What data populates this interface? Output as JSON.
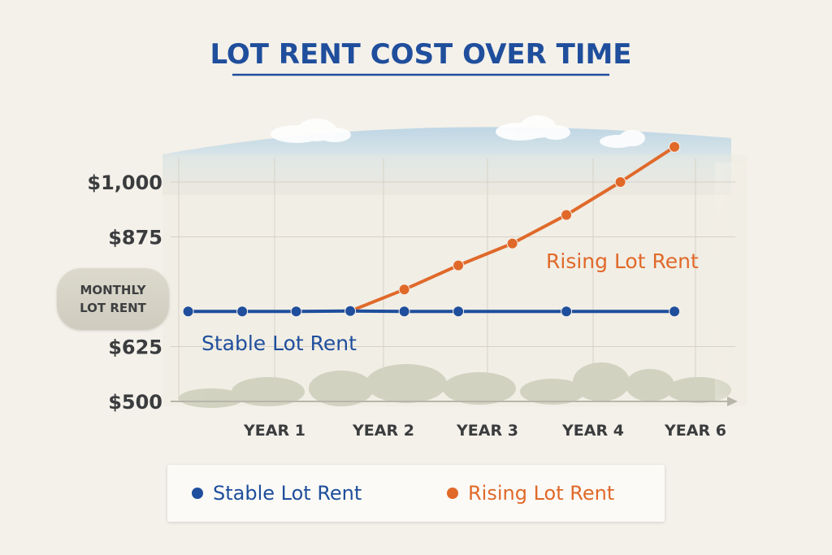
{
  "colors": {
    "stable": "#1f4e9c",
    "rising": "#e0692a",
    "title": "#1f4e9c",
    "grid": "#d6d2c6",
    "axis_text": "#3a3c3e"
  },
  "chart_data": {
    "type": "line",
    "title": "LOT RENT COST OVER TIME",
    "ylabel": "MONTHLY LOT RENT",
    "xlabel": "",
    "y_ticks": [
      "$1,000",
      "$875",
      "$625",
      "$500"
    ],
    "y_tick_values": [
      1000,
      875,
      625,
      500
    ],
    "ylim": [
      500,
      1000
    ],
    "x_tick_labels": [
      "YEAR 1",
      "YEAR 2",
      "YEAR 3",
      "YEAR 4",
      "YEAR 6"
    ],
    "grid": true,
    "series": [
      {
        "name": "Stable Lot Rent",
        "color": "#1f4e9c",
        "points": [
          {
            "x": 0.2,
            "y": 705
          },
          {
            "x": 0.7,
            "y": 705
          },
          {
            "x": 1.2,
            "y": 705
          },
          {
            "x": 1.7,
            "y": 706
          },
          {
            "x": 2.2,
            "y": 705
          },
          {
            "x": 2.7,
            "y": 705
          },
          {
            "x": 3.7,
            "y": 705
          },
          {
            "x": 4.7,
            "y": 705
          }
        ]
      },
      {
        "name": "Rising Lot Rent",
        "color": "#e0692a",
        "points": [
          {
            "x": 1.7,
            "y": 706
          },
          {
            "x": 2.2,
            "y": 755
          },
          {
            "x": 2.7,
            "y": 810
          },
          {
            "x": 3.2,
            "y": 860
          },
          {
            "x": 3.7,
            "y": 925
          },
          {
            "x": 4.2,
            "y": 1000
          },
          {
            "x": 4.7,
            "y": 1080
          }
        ]
      }
    ]
  },
  "legend": {
    "stable_label": "Stable Lot Rent",
    "rising_label": "Rising Lot Rent"
  }
}
